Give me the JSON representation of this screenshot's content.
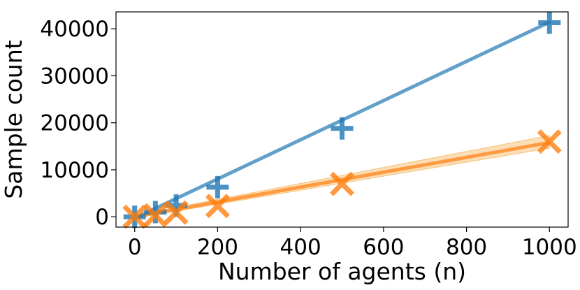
{
  "chart_data": {
    "type": "scatter",
    "title": "",
    "xlabel": "Number of agents (n)",
    "ylabel": "Sample count",
    "xlim": [
      -45,
      1045
    ],
    "ylim": [
      -2200,
      43600
    ],
    "xticks": [
      0,
      200,
      400,
      600,
      800,
      1000
    ],
    "yticks": [
      0,
      10000,
      20000,
      30000,
      40000
    ],
    "grid": false,
    "legend": "none",
    "series": [
      {
        "marker": "plus",
        "color": "#1f77b4",
        "points": [
          {
            "x": 0,
            "y": 0
          },
          {
            "x": 50,
            "y": 1000
          },
          {
            "x": 100,
            "y": 2400
          },
          {
            "x": 200,
            "y": 6300
          },
          {
            "x": 500,
            "y": 18800
          },
          {
            "x": 1000,
            "y": 41300
          }
        ],
        "fit": {
          "x": [
            0,
            1000
          ],
          "y": [
            -300,
            41400
          ]
        }
      },
      {
        "marker": "x",
        "color": "#ff7f0e",
        "band_color": "#f8c27a",
        "points": [
          {
            "x": 0,
            "y": 0
          },
          {
            "x": 50,
            "y": 300
          },
          {
            "x": 100,
            "y": 900
          },
          {
            "x": 200,
            "y": 2300
          },
          {
            "x": 500,
            "y": 7000
          },
          {
            "x": 1000,
            "y": 16000
          }
        ],
        "fit": {
          "x": [
            0,
            1000
          ],
          "y": [
            0,
            15800
          ]
        },
        "band": {
          "x": [
            0,
            1000
          ],
          "lower": [
            -300,
            14600
          ],
          "upper": [
            300,
            17300
          ]
        }
      }
    ]
  }
}
